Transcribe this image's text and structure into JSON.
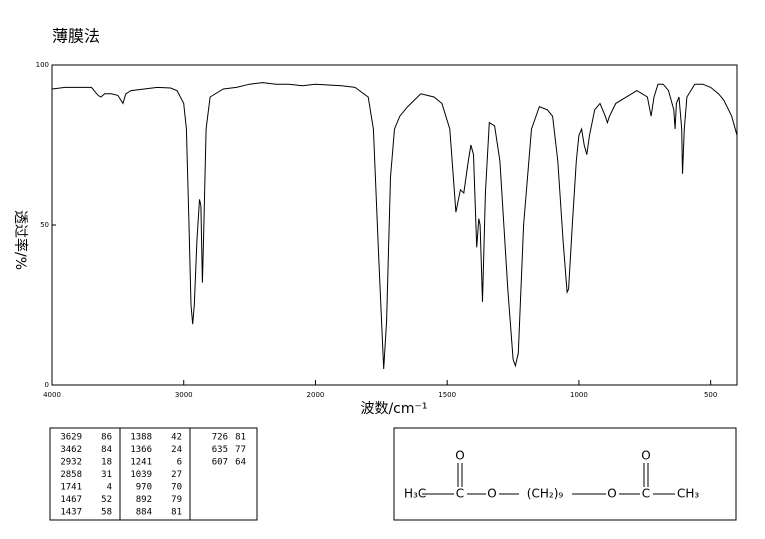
{
  "chart_data": {
    "type": "line",
    "title": "薄膜法",
    "xlabel": "波数/cm⁻¹",
    "ylabel": "透过率/%",
    "color": "#000000",
    "xlim": [
      4000,
      400
    ],
    "x_scale_break": 2000,
    "x_scale_ratio": 2,
    "xticks": [
      4000,
      3000,
      2000,
      1500,
      1000,
      500
    ],
    "ylim": [
      0,
      100
    ],
    "yticks": [
      0,
      50,
      100
    ],
    "x": [
      4000,
      3900,
      3800,
      3700,
      3650,
      3629,
      3600,
      3550,
      3500,
      3462,
      3440,
      3400,
      3300,
      3200,
      3100,
      3050,
      3000,
      2980,
      2960,
      2945,
      2932,
      2920,
      2900,
      2880,
      2870,
      2858,
      2850,
      2830,
      2800,
      2700,
      2600,
      2500,
      2400,
      2300,
      2200,
      2100,
      2000,
      1900,
      1850,
      1800,
      1780,
      1760,
      1741,
      1730,
      1715,
      1700,
      1680,
      1650,
      1600,
      1550,
      1520,
      1490,
      1467,
      1450,
      1437,
      1420,
      1410,
      1400,
      1388,
      1380,
      1375,
      1366,
      1355,
      1340,
      1320,
      1300,
      1270,
      1250,
      1241,
      1230,
      1210,
      1180,
      1150,
      1120,
      1100,
      1080,
      1060,
      1045,
      1039,
      1025,
      1010,
      1000,
      990,
      980,
      970,
      960,
      940,
      920,
      900,
      892,
      884,
      860,
      800,
      780,
      760,
      740,
      726,
      715,
      700,
      680,
      660,
      640,
      635,
      630,
      620,
      610,
      607,
      600,
      590,
      560,
      530,
      500,
      470,
      450,
      420,
      400
    ],
    "values": [
      92.5,
      93,
      93,
      93,
      90.5,
      90,
      91,
      91,
      90.5,
      88,
      91,
      92,
      92.5,
      93,
      92.8,
      92,
      88,
      80,
      50,
      25,
      19,
      25,
      45,
      58,
      56,
      32,
      45,
      80,
      90,
      92.5,
      93,
      94,
      94.5,
      94,
      94,
      93.5,
      94,
      93.5,
      93,
      90,
      80,
      40,
      5,
      20,
      65,
      80,
      84,
      87,
      91,
      90,
      88,
      80,
      54,
      61,
      60,
      70,
      75,
      72,
      43,
      52,
      50,
      26,
      60,
      82,
      81,
      70,
      30,
      8,
      6,
      10,
      50,
      80,
      87,
      86,
      84,
      70,
      45,
      29,
      30,
      50,
      70,
      78,
      80,
      75,
      72,
      78,
      86,
      88,
      84,
      82,
      84,
      88,
      91,
      92,
      91,
      90,
      84,
      90,
      94,
      94,
      92,
      86,
      80,
      88,
      90,
      80,
      66,
      80,
      90,
      94,
      94,
      93,
      91,
      89,
      84,
      78
    ]
  },
  "peak_table": [
    [
      [
        3629,
        86
      ],
      [
        3462,
        84
      ],
      [
        2932,
        18
      ],
      [
        2858,
        31
      ],
      [
        1741,
        4
      ],
      [
        1467,
        52
      ],
      [
        1437,
        58
      ]
    ],
    [
      [
        1388,
        42
      ],
      [
        1366,
        24
      ],
      [
        1241,
        6
      ],
      [
        1039,
        27
      ],
      [
        970,
        70
      ],
      [
        892,
        79
      ],
      [
        884,
        81
      ]
    ],
    [
      [
        726,
        81
      ],
      [
        635,
        77
      ],
      [
        607,
        64
      ]
    ]
  ],
  "structure": {
    "atoms": [
      "H₃C",
      "C",
      "O",
      "O",
      "(CH₂)₉",
      "O",
      "C",
      "CH₃",
      "O"
    ]
  }
}
